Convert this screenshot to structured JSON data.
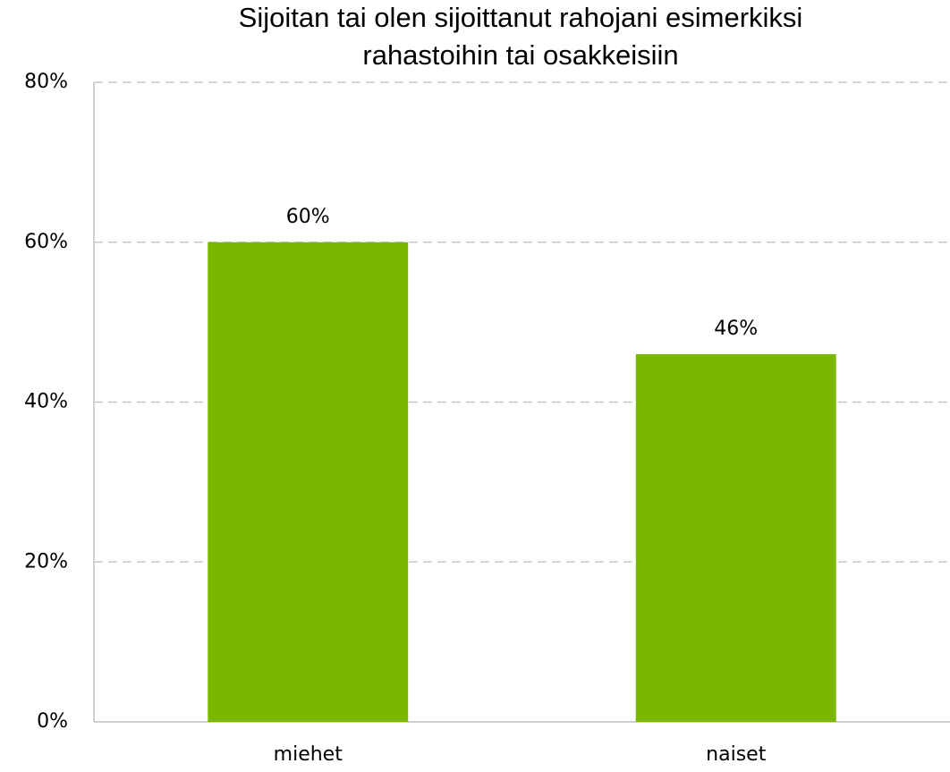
{
  "chart_data": {
    "type": "bar",
    "title": [
      "Sijoitan tai olen sijoittanut rahojani esimerkiksi",
      "rahastoihin tai osakkeisiin"
    ],
    "categories": [
      "miehet",
      "naiset"
    ],
    "values": [
      60,
      46
    ],
    "value_labels": [
      "60%",
      "46%"
    ],
    "color": "#7ab800",
    "ylim": [
      0,
      80
    ],
    "yticks": [
      {
        "value": 0,
        "label": "0%"
      },
      {
        "value": 20,
        "label": "20%"
      },
      {
        "value": 40,
        "label": "40%"
      },
      {
        "value": 60,
        "label": "60%"
      },
      {
        "value": 80,
        "label": "80%"
      }
    ],
    "grid": true
  }
}
